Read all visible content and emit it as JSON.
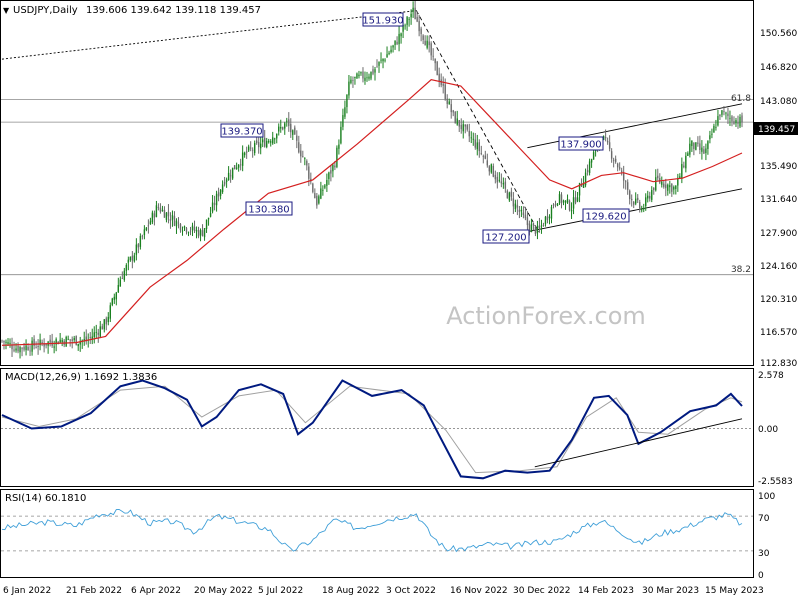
{
  "chart_data": [
    {
      "type": "candlestick",
      "title": "USDJPY,Daily",
      "ohlc_label": "139.606 139.642 139.118 139.457",
      "ohlc": {
        "open": 139.606,
        "high": 139.642,
        "low": 139.118,
        "close": 139.457
      },
      "last_price_label": "139.457",
      "ylim": [
        112.3,
        153.0
      ],
      "y_ticks": [
        "150.560",
        "146.820",
        "143.080",
        "139.340",
        "135.490",
        "131.640",
        "127.900",
        "124.160",
        "120.310",
        "116.570",
        "112.830"
      ],
      "x_ticks": [
        "6 Jan 2022",
        "21 Feb 2022",
        "6 Apr 2022",
        "20 May 2022",
        "5 Jul 2022",
        "18 Aug 2022",
        "3 Oct 2022",
        "16 Nov 2022",
        "30 Dec 2022",
        "14 Feb 2023",
        "30 Mar 2023",
        "15 May 2023"
      ],
      "price_path": [
        [
          0,
          115.0
        ],
        [
          0.02,
          114.2
        ],
        [
          0.05,
          114.6
        ],
        [
          0.08,
          115.1
        ],
        [
          0.115,
          115.0
        ],
        [
          0.14,
          117.0
        ],
        [
          0.16,
          122.0
        ],
        [
          0.18,
          125.0
        ],
        [
          0.21,
          130.0
        ],
        [
          0.24,
          128.0
        ],
        [
          0.27,
          127.0
        ],
        [
          0.3,
          133.0
        ],
        [
          0.33,
          136.0
        ],
        [
          0.36,
          137.5
        ],
        [
          0.385,
          139.37
        ],
        [
          0.41,
          135.0
        ],
        [
          0.425,
          130.38
        ],
        [
          0.45,
          135.0
        ],
        [
          0.47,
          144.0
        ],
        [
          0.5,
          145.0
        ],
        [
          0.53,
          148.0
        ],
        [
          0.555,
          151.93
        ],
        [
          0.575,
          148.0
        ],
        [
          0.61,
          140.0
        ],
        [
          0.64,
          137.0
        ],
        [
          0.67,
          133.0
        ],
        [
          0.695,
          130.0
        ],
        [
          0.71,
          128.0
        ],
        [
          0.725,
          127.2
        ],
        [
          0.75,
          131.0
        ],
        [
          0.77,
          130.0
        ],
        [
          0.79,
          134.0
        ],
        [
          0.81,
          137.9
        ],
        [
          0.83,
          135.0
        ],
        [
          0.85,
          131.0
        ],
        [
          0.865,
          129.62
        ],
        [
          0.885,
          133.0
        ],
        [
          0.91,
          132.0
        ],
        [
          0.93,
          137.0
        ],
        [
          0.95,
          136.0
        ],
        [
          0.97,
          140.5
        ],
        [
          0.985,
          139.9
        ],
        [
          1.0,
          139.457
        ]
      ],
      "series": [
        {
          "name": "",
          "color": "#d42020",
          "points": [
            [
              0,
              114.5
            ],
            [
              0.1,
              114.8
            ],
            [
              0.14,
              115.5
            ],
            [
              0.2,
              121.0
            ],
            [
              0.25,
              124.0
            ],
            [
              0.3,
              127.5
            ],
            [
              0.36,
              131.5
            ],
            [
              0.42,
              133.0
            ],
            [
              0.48,
              137.0
            ],
            [
              0.55,
              142.0
            ],
            [
              0.58,
              144.2
            ],
            [
              0.62,
              143.5
            ],
            [
              0.66,
              140.0
            ],
            [
              0.7,
              136.5
            ],
            [
              0.74,
              133.0
            ],
            [
              0.77,
              132.0
            ],
            [
              0.81,
              133.5
            ],
            [
              0.84,
              133.8
            ],
            [
              0.88,
              132.8
            ],
            [
              0.92,
              133.2
            ],
            [
              0.96,
              134.5
            ],
            [
              1.0,
              136.0
            ]
          ]
        }
      ],
      "annotations": [
        "151.930",
        "139.370",
        "130.380",
        "137.900",
        "129.620",
        "127.200",
        "61.8",
        "38.2"
      ],
      "horizontal_levels": [
        {
          "label": "61.8",
          "y": 142.0
        },
        {
          "label": "",
          "y": 139.457
        },
        {
          "label": "38.2",
          "y": 122.4
        }
      ],
      "trendlines": [
        {
          "from": [
            0,
            146.5
          ],
          "to": [
            0.56,
            151.93
          ],
          "style": "dotted"
        },
        {
          "from": [
            0.56,
            151.93
          ],
          "to": [
            0.725,
            127.2
          ],
          "style": "dashed"
        },
        {
          "from": [
            0.71,
            136.6
          ],
          "to": [
            1.0,
            141.5
          ],
          "style": "solid"
        },
        {
          "from": [
            0.71,
            127.2
          ],
          "to": [
            1.0,
            132.0
          ],
          "style": "solid"
        }
      ],
      "watermark": "ActionForex.com",
      "grid": false
    },
    {
      "type": "line",
      "title": "MACD(12,26,9) 1.1692 1.3836",
      "ylim": [
        -3.0,
        3.1
      ],
      "y_ticks": [
        "2.578",
        "0.00",
        "-2.5583"
      ],
      "series": [
        {
          "name": "",
          "color": "#001a80",
          "points": [
            [
              0,
              0.7
            ],
            [
              0.04,
              0.0
            ],
            [
              0.08,
              0.1
            ],
            [
              0.12,
              0.8
            ],
            [
              0.16,
              2.2
            ],
            [
              0.19,
              2.5
            ],
            [
              0.22,
              2.1
            ],
            [
              0.25,
              1.5
            ],
            [
              0.27,
              0.1
            ],
            [
              0.29,
              0.6
            ],
            [
              0.32,
              2.0
            ],
            [
              0.35,
              2.3
            ],
            [
              0.38,
              1.8
            ],
            [
              0.4,
              -0.3
            ],
            [
              0.42,
              0.3
            ],
            [
              0.46,
              2.5
            ],
            [
              0.5,
              1.7
            ],
            [
              0.54,
              2.0
            ],
            [
              0.57,
              1.2
            ],
            [
              0.59,
              -0.3
            ],
            [
              0.62,
              -2.5
            ],
            [
              0.65,
              -2.6
            ],
            [
              0.68,
              -2.2
            ],
            [
              0.71,
              -2.3
            ],
            [
              0.74,
              -2.2
            ],
            [
              0.77,
              -0.6
            ],
            [
              0.8,
              1.6
            ],
            [
              0.82,
              1.7
            ],
            [
              0.845,
              0.7
            ],
            [
              0.86,
              -0.8
            ],
            [
              0.89,
              -0.2
            ],
            [
              0.93,
              0.9
            ],
            [
              0.965,
              1.2
            ],
            [
              0.985,
              1.8
            ],
            [
              1.0,
              1.1692
            ]
          ]
        },
        {
          "name": "",
          "color": "#a0a0a0",
          "points": [
            [
              0,
              0.6
            ],
            [
              0.05,
              0.1
            ],
            [
              0.1,
              0.5
            ],
            [
              0.16,
              2.0
            ],
            [
              0.22,
              2.2
            ],
            [
              0.27,
              0.6
            ],
            [
              0.32,
              1.7
            ],
            [
              0.37,
              2.0
            ],
            [
              0.41,
              0.3
            ],
            [
              0.47,
              2.2
            ],
            [
              0.55,
              1.8
            ],
            [
              0.6,
              -0.1
            ],
            [
              0.64,
              -2.3
            ],
            [
              0.7,
              -2.2
            ],
            [
              0.75,
              -2.0
            ],
            [
              0.79,
              0.6
            ],
            [
              0.83,
              1.6
            ],
            [
              0.86,
              -0.2
            ],
            [
              0.9,
              -0.3
            ],
            [
              0.95,
              1.0
            ],
            [
              0.985,
              1.6
            ],
            [
              1.0,
              1.3836
            ]
          ]
        }
      ],
      "trendlines": [
        {
          "from": [
            0.72,
            -2.0
          ],
          "to": [
            1.0,
            0.5
          ],
          "style": "solid"
        }
      ],
      "levels": [
        0
      ]
    },
    {
      "type": "line",
      "title": "RSI(14) 60.1810",
      "ylim": [
        0,
        100
      ],
      "y_ticks": [
        "100",
        "70",
        "30",
        "0"
      ],
      "series": [
        {
          "name": "",
          "color": "#3f9fd8",
          "points": [
            [
              0,
              56
            ],
            [
              0.03,
              60
            ],
            [
              0.06,
              63
            ],
            [
              0.1,
              59
            ],
            [
              0.13,
              72
            ],
            [
              0.17,
              76
            ],
            [
              0.2,
              62
            ],
            [
              0.23,
              64
            ],
            [
              0.26,
              52
            ],
            [
              0.29,
              70
            ],
            [
              0.33,
              62
            ],
            [
              0.36,
              55
            ],
            [
              0.39,
              30
            ],
            [
              0.42,
              42
            ],
            [
              0.45,
              66
            ],
            [
              0.48,
              56
            ],
            [
              0.52,
              66
            ],
            [
              0.56,
              73
            ],
            [
              0.58,
              48
            ],
            [
              0.6,
              32
            ],
            [
              0.63,
              33
            ],
            [
              0.66,
              38
            ],
            [
              0.69,
              35
            ],
            [
              0.72,
              40
            ],
            [
              0.75,
              41
            ],
            [
              0.78,
              55
            ],
            [
              0.81,
              65
            ],
            [
              0.84,
              50
            ],
            [
              0.86,
              38
            ],
            [
              0.89,
              50
            ],
            [
              0.92,
              56
            ],
            [
              0.95,
              66
            ],
            [
              0.98,
              72
            ],
            [
              1.0,
              60.181
            ]
          ]
        }
      ],
      "levels": [
        70,
        30
      ]
    }
  ]
}
